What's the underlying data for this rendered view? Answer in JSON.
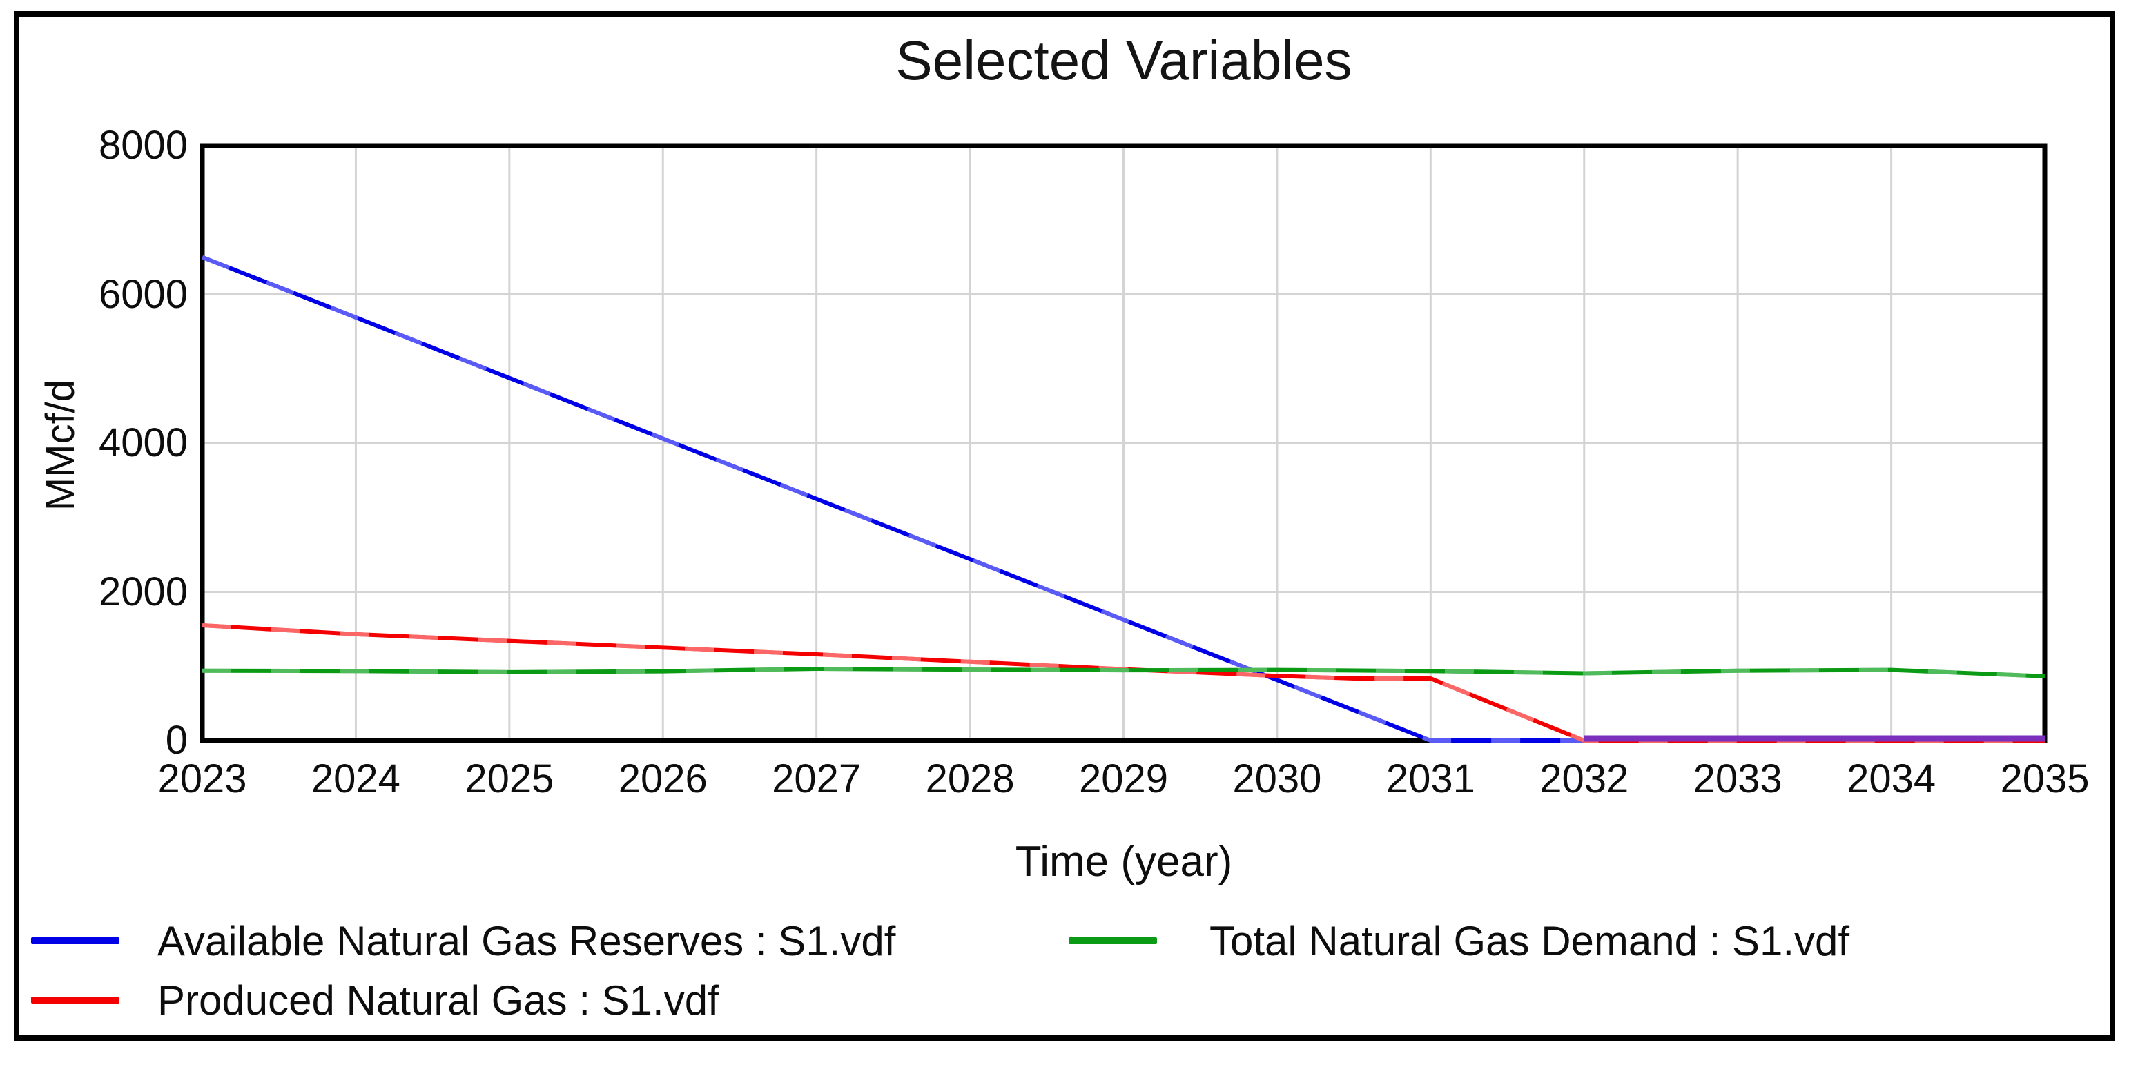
{
  "chart_data": {
    "type": "line",
    "title": "Selected Variables",
    "xlabel": "Time (year)",
    "ylabel": "MMcf/d",
    "xlim": [
      2023,
      2035
    ],
    "ylim": [
      0,
      8000
    ],
    "x_ticks": [
      2023,
      2024,
      2025,
      2026,
      2027,
      2028,
      2029,
      2030,
      2031,
      2032,
      2033,
      2034,
      2035
    ],
    "y_ticks": [
      0,
      2000,
      4000,
      6000,
      8000
    ],
    "grid": true,
    "legend_position": "bottom",
    "series": [
      {
        "name": "Available Natural Gas Reserves : S1.vdf",
        "color": "#0000e6",
        "halo": "#8a8aff",
        "points": [
          [
            2023,
            6500
          ],
          [
            2024,
            5690
          ],
          [
            2025,
            4875
          ],
          [
            2026,
            4060
          ],
          [
            2027,
            3250
          ],
          [
            2028,
            2440
          ],
          [
            2029,
            1625
          ],
          [
            2030,
            815
          ],
          [
            2031,
            0
          ],
          [
            2032,
            0
          ],
          [
            2033,
            0
          ],
          [
            2034,
            0
          ],
          [
            2035,
            0
          ]
        ]
      },
      {
        "name": "Produced Natural Gas : S1.vdf",
        "color": "#f40000",
        "halo": "#ff9d9d",
        "points": [
          [
            2023,
            1550
          ],
          [
            2024,
            1430
          ],
          [
            2025,
            1340
          ],
          [
            2026,
            1250
          ],
          [
            2027,
            1160
          ],
          [
            2028,
            1060
          ],
          [
            2029,
            960
          ],
          [
            2030,
            870
          ],
          [
            2030.5,
            835
          ],
          [
            2031,
            835
          ],
          [
            2032,
            0
          ],
          [
            2033,
            0
          ],
          [
            2034,
            0
          ],
          [
            2035,
            0
          ]
        ]
      },
      {
        "name": "Total Natural Gas Demand : S1.vdf",
        "color": "#0a9a14",
        "halo": "#74cc81",
        "points": [
          [
            2023,
            940
          ],
          [
            2024,
            935
          ],
          [
            2025,
            920
          ],
          [
            2026,
            932
          ],
          [
            2027,
            965
          ],
          [
            2028,
            955
          ],
          [
            2029,
            945
          ],
          [
            2030,
            950
          ],
          [
            2031,
            935
          ],
          [
            2032,
            905
          ],
          [
            2033,
            940
          ],
          [
            2034,
            950
          ],
          [
            2035,
            865
          ]
        ]
      }
    ],
    "overlap_segment": {
      "note": "blue and red series both at zero render as purple from 2032 onward",
      "color": "#7a2fbd",
      "x_from": 2032,
      "x_to": 2035,
      "y": 0
    }
  },
  "legend": {
    "items": [
      {
        "label": "Available Natural Gas Reserves : S1.vdf",
        "color": "#0000e6",
        "col": 0,
        "row": 0
      },
      {
        "label": "Produced Natural Gas : S1.vdf",
        "color": "#f40000",
        "col": 0,
        "row": 1
      },
      {
        "label": "Total Natural Gas Demand : S1.vdf",
        "color": "#0a9a14",
        "col": 1,
        "row": 0
      }
    ]
  },
  "colors": {
    "background": "#ffffff",
    "frame": "#000000",
    "grid": "#d4d4d4",
    "text": "#0d0d0d",
    "series_blue": "#0000e6",
    "series_red": "#f40000",
    "series_green": "#0a9a14",
    "zero_overlap_purple": "#7a2fbd"
  }
}
